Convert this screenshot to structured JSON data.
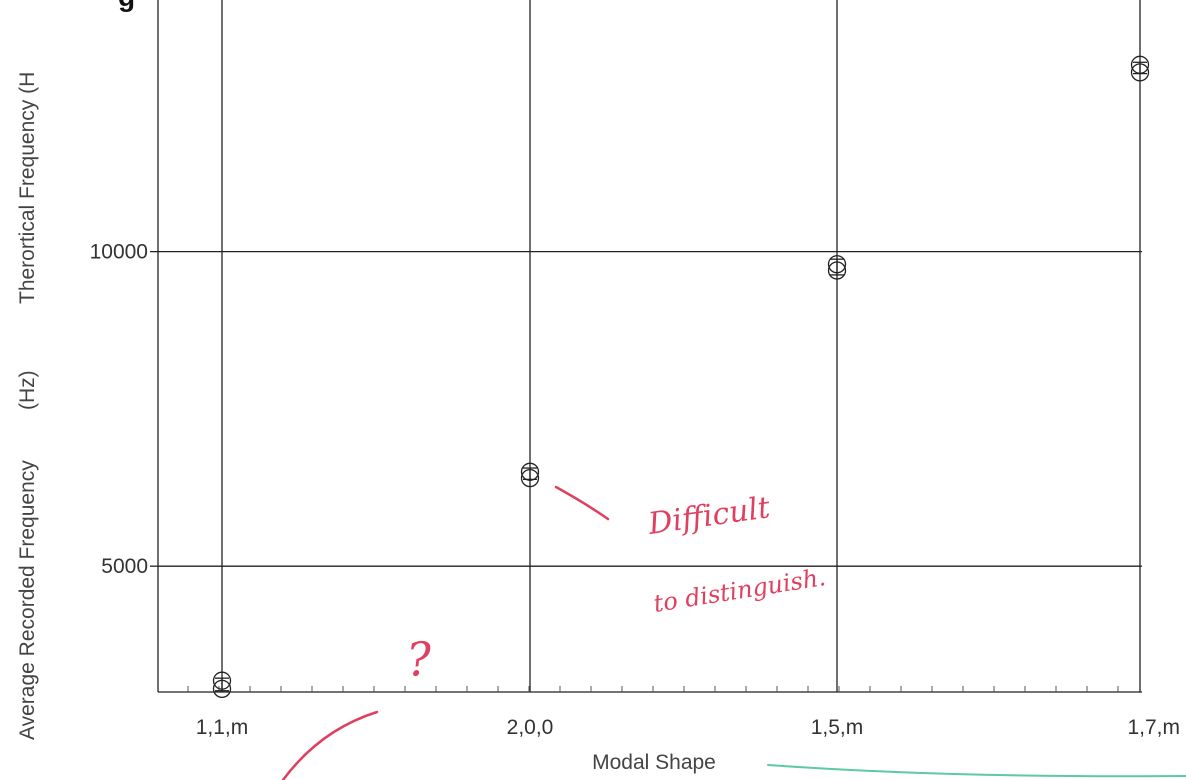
{
  "chart_data": {
    "type": "scatter",
    "title": "g",
    "xlabel": "Modal Shape",
    "ylabel_parts": [
      "Average Recorded Frequency",
      "(Hz)",
      "Therortical Frequency (H"
    ],
    "categories": [
      "1,1,m",
      "2,0,0",
      "1,5,m",
      "1,7,m"
    ],
    "y_ticks": [
      5000,
      10000
    ],
    "ylim": [
      3000,
      14000
    ],
    "grid": true,
    "series": [
      {
        "markers": "circle",
        "points": [
          {
            "x": "1,1,m",
            "y": 3180
          },
          {
            "x": "2,0,0",
            "y": 6500
          },
          {
            "x": "1,5,m",
            "y": 9800
          },
          {
            "x": "1,7,m",
            "y": 12970
          }
        ]
      },
      {
        "markers": "circle",
        "points": [
          {
            "x": "1,1,m",
            "y": 3050
          },
          {
            "x": "2,0,0",
            "y": 6400
          },
          {
            "x": "1,5,m",
            "y": 9700
          },
          {
            "x": "1,7,m",
            "y": 12850
          }
        ]
      }
    ],
    "error_bars": [
      {
        "x": "1,1,m",
        "low": 3020,
        "high": 3220
      },
      {
        "x": "2,0,0",
        "low": 6380,
        "high": 6560
      },
      {
        "x": "1,5,m",
        "low": 9630,
        "high": 9880
      },
      {
        "x": "1,7,m",
        "low": 12830,
        "high": 13010
      }
    ]
  },
  "annotations": {
    "note1": "Difficult",
    "note2": "to distinguish.",
    "note3": "?"
  },
  "colors": {
    "ink_red": "#e0405f",
    "ink_green": "#5cc9a7",
    "axis": "#222222"
  }
}
